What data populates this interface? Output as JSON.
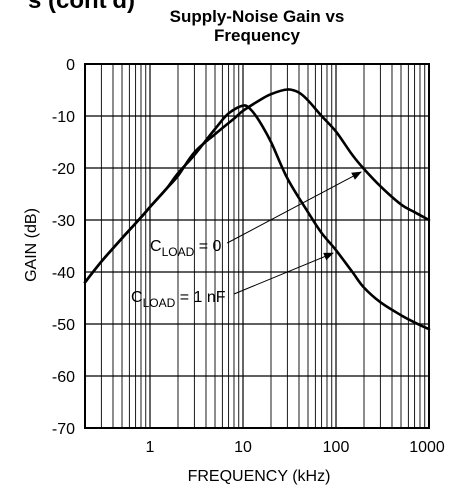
{
  "chart_data": {
    "type": "line",
    "title": "Supply-Noise Gain vs Frequency",
    "title_lines": [
      "Supply-Noise Gain vs",
      "Frequency"
    ],
    "header_fragment": "s (cont'd)",
    "xlabel": "FREQUENCY (kHz)",
    "ylabel": "GAIN (dB)",
    "x_scale": "log",
    "xlim": [
      0.2,
      1000
    ],
    "ylim": [
      -70,
      0
    ],
    "x_ticks": [
      1,
      10,
      100,
      1000
    ],
    "x_tick_labels": [
      "1",
      "10",
      "100",
      "1000"
    ],
    "y_ticks": [
      0,
      -10,
      -20,
      -30,
      -40,
      -50,
      -60,
      -70
    ],
    "y_tick_labels": [
      "0",
      "-10",
      "-20",
      "-30",
      "-40",
      "-50",
      "-60",
      "-70"
    ],
    "grid": true,
    "series": [
      {
        "name": "CLOAD = 0",
        "x": [
          0.2,
          0.3,
          0.5,
          0.8,
          1,
          1.5,
          2,
          3,
          5,
          8,
          10,
          15,
          20,
          30,
          40,
          50,
          70,
          100,
          150,
          200,
          300,
          500,
          700,
          1000
        ],
        "y": [
          -42,
          -38,
          -33.5,
          -29.5,
          -27.5,
          -24,
          -21.5,
          -17,
          -13.5,
          -10.5,
          -9,
          -7,
          -5.8,
          -4.9,
          -5.5,
          -7,
          -10,
          -13,
          -17.5,
          -20.2,
          -23.5,
          -27,
          -28.5,
          -30
        ]
      },
      {
        "name": "CLOAD = 1 nF",
        "x": [
          0.2,
          0.3,
          0.5,
          0.8,
          1,
          1.5,
          2,
          3,
          5,
          7,
          10,
          12,
          15,
          20,
          30,
          50,
          70,
          100,
          150,
          200,
          300,
          500,
          700,
          1000
        ],
        "y": [
          -42,
          -38,
          -33.5,
          -29.5,
          -27.5,
          -24,
          -21,
          -17.5,
          -12.5,
          -9.5,
          -8,
          -8.7,
          -11,
          -15,
          -22,
          -28.5,
          -32.5,
          -35.8,
          -40,
          -43,
          -45.8,
          -48.3,
          -49.7,
          -51
        ]
      }
    ],
    "annotations": [
      {
        "main": "C",
        "sub": "LOAD",
        "rest": " = 0",
        "target_series": 0,
        "target": [
          200,
          -20.2
        ]
      },
      {
        "main": "C",
        "sub": "LOAD",
        "rest": " = 1 nF",
        "target_series": 1,
        "target": [
          100,
          -35.8
        ]
      }
    ]
  }
}
